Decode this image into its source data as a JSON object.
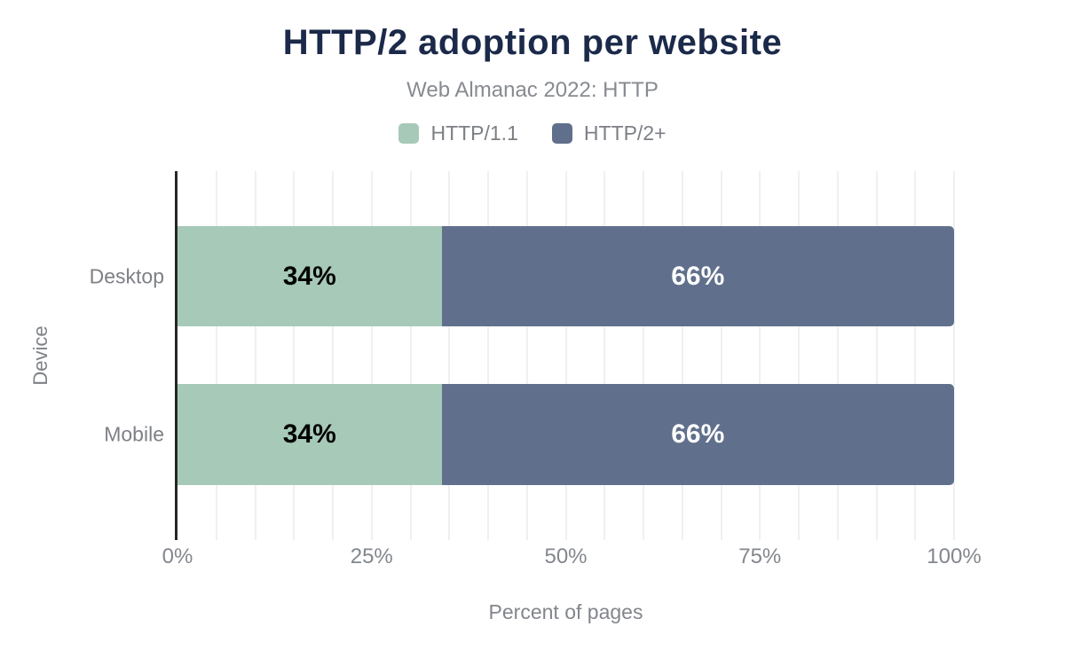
{
  "chart_data": {
    "type": "bar",
    "orientation": "horizontal",
    "stacked": true,
    "title": "HTTP/2 adoption per website",
    "subtitle": "Web Almanac 2022: HTTP",
    "xlabel": "Percent of pages",
    "ylabel": "Device",
    "xlim": [
      0,
      100
    ],
    "xticks": [
      {
        "value": 0,
        "label": "0%"
      },
      {
        "value": 25,
        "label": "25%"
      },
      {
        "value": 50,
        "label": "50%"
      },
      {
        "value": 75,
        "label": "75%"
      },
      {
        "value": 100,
        "label": "100%"
      }
    ],
    "grid": {
      "show": true,
      "axis": "x",
      "step_percent": 5
    },
    "legend_position": "top",
    "categories": [
      "Desktop",
      "Mobile"
    ],
    "series": [
      {
        "name": "HTTP/1.1",
        "color": "#a7c9b8",
        "label_color": "#000000",
        "values": [
          34,
          34
        ],
        "labels": [
          "34%",
          "34%"
        ]
      },
      {
        "name": "HTTP/2+",
        "color": "#60708c",
        "label_color": "#ffffff",
        "values": [
          66,
          66
        ],
        "labels": [
          "66%",
          "66%"
        ]
      }
    ]
  },
  "colors": {
    "background": "#ffffff",
    "title": "#1b2a49",
    "subtitle": "#878b90",
    "axis_text": "#82868c",
    "category_text": "#7d8186",
    "axis_line": "#262626",
    "gridline": "#f0f0f1"
  }
}
